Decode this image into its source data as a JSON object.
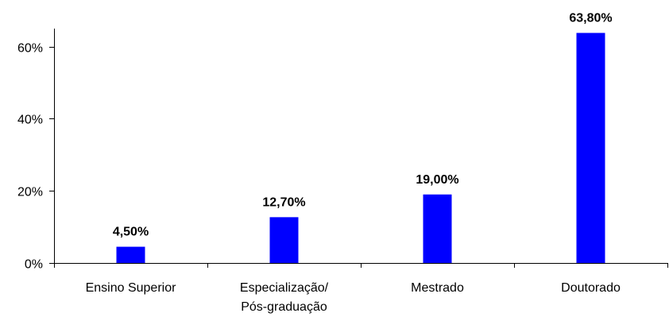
{
  "chart_data": {
    "type": "bar",
    "categories": [
      [
        "Ensino Superior"
      ],
      [
        "Especialização/",
        "Pós-graduação"
      ],
      [
        "Mestrado"
      ],
      [
        "Doutorado"
      ]
    ],
    "values": [
      4.5,
      12.7,
      19.0,
      63.8
    ],
    "data_labels": [
      "4,50%",
      "12,70%",
      "19,00%",
      "63,80%"
    ],
    "yticks": [
      0,
      20,
      40,
      60
    ],
    "ytick_labels": [
      "0%",
      "20%",
      "40%",
      "60%"
    ],
    "ylim": [
      0,
      65
    ],
    "grid": false,
    "legend": "none",
    "bar_color": "#0000ff"
  }
}
